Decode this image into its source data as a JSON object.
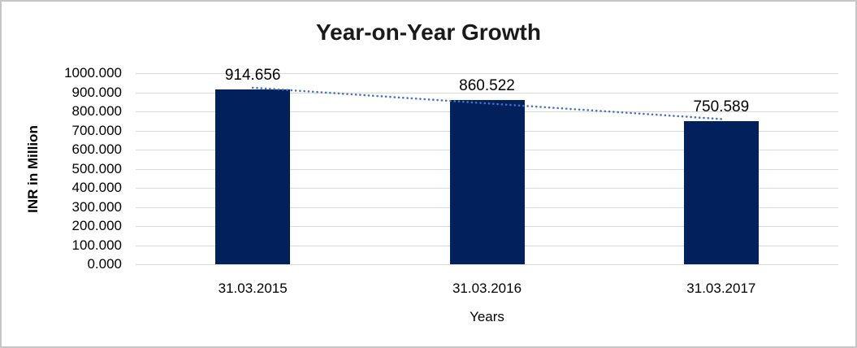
{
  "chart_data": {
    "type": "bar",
    "title": "Year-on-Year Growth",
    "xlabel": "Years",
    "ylabel": "INR in Million",
    "categories": [
      "31.03.2015",
      "31.03.2016",
      "31.03.2017"
    ],
    "values": [
      914.656,
      860.522,
      750.589
    ],
    "value_labels": [
      "914.656",
      "860.522",
      "750.589"
    ],
    "ylim": [
      0,
      1000
    ],
    "ytick_interval": 100,
    "ytick_labels": [
      "0.000",
      "100.000",
      "200.000",
      "300.000",
      "400.000",
      "500.000",
      "600.000",
      "700.000",
      "800.000",
      "900.000",
      "1000.000"
    ],
    "grid": true,
    "legend": "none",
    "trendline": {
      "type": "linear",
      "style": "dotted"
    },
    "colors": {
      "bar": "#02215C",
      "trendline": "#4472C4",
      "gridline": "#D9D9D9",
      "text": "#000000",
      "title": "#1A1A1A",
      "border": "#C6C6C6"
    }
  }
}
